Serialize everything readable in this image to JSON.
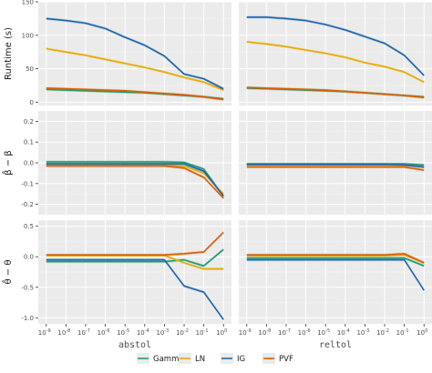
{
  "chart_data": {
    "type": "line",
    "colors": {
      "Gamma": "#1b9e77",
      "LN": "#e6ab02",
      "IG": "#2166ac",
      "PVF": "#d95f02"
    },
    "series_names": [
      "Gamma",
      "LN",
      "IG",
      "PVF"
    ],
    "x": [
      -9,
      -8,
      -7,
      -6,
      -5,
      -4,
      -3,
      -2,
      -1,
      0
    ],
    "x_tick_labels": [
      "10-9",
      "10-8",
      "10-7",
      "10-6",
      "10-5",
      "10-4",
      "10-3",
      "10-2",
      "10-1",
      "100"
    ],
    "x_tick_base": "10",
    "x_tick_exponents": [
      "-9",
      "-8",
      "-7",
      "-6",
      "-5",
      "-4",
      "-3",
      "-2",
      "-1",
      "0"
    ],
    "columns": [
      "abstol",
      "reltol"
    ],
    "rows": [
      {
        "ylabel": "Runtime (s)",
        "ylim": [
          -5,
          150
        ],
        "yticks": [
          0,
          50,
          100,
          150
        ],
        "ytick_labels": [
          "0",
          "50",
          "100",
          "150"
        ],
        "panels": [
          {
            "series": [
              {
                "name": "Gamma",
                "values": [
                  19,
                  18,
                  17,
                  16,
                  15,
                  14,
                  12,
                  10,
                  8,
                  5
                ]
              },
              {
                "name": "LN",
                "values": [
                  80,
                  75,
                  70,
                  64,
                  58,
                  52,
                  45,
                  37,
                  30,
                  18
                ]
              },
              {
                "name": "IG",
                "values": [
                  125,
                  122,
                  118,
                  110,
                  97,
                  85,
                  69,
                  42,
                  35,
                  20
                ]
              },
              {
                "name": "PVF",
                "values": [
                  21,
                  20,
                  19,
                  18,
                  17,
                  15,
                  13,
                  11,
                  8,
                  4
                ]
              }
            ]
          },
          {
            "series": [
              {
                "name": "Gamma",
                "values": [
                  21,
                  20,
                  19,
                  18,
                  17,
                  16,
                  14,
                  12,
                  10,
                  8
                ]
              },
              {
                "name": "LN",
                "values": [
                  90,
                  87,
                  83,
                  78,
                  73,
                  67,
                  59,
                  53,
                  45,
                  30
                ]
              },
              {
                "name": "IG",
                "values": [
                  127,
                  127,
                  125,
                  122,
                  116,
                  108,
                  98,
                  88,
                  70,
                  40
                ]
              },
              {
                "name": "PVF",
                "values": [
                  22,
                  21,
                  20,
                  19,
                  18,
                  16,
                  14,
                  12,
                  10,
                  7
                ]
              }
            ]
          }
        ]
      },
      {
        "ylabel": "β̂ − β",
        "ylim": [
          -0.25,
          0.25
        ],
        "yticks": [
          -0.2,
          -0.1,
          0.0,
          0.1,
          0.2
        ],
        "ytick_labels": [
          "-0.2",
          "-0.1",
          "0.0",
          "0.1",
          "0.2"
        ],
        "panels": [
          {
            "series": [
              {
                "name": "Gamma",
                "values": [
                  0.005,
                  0.005,
                  0.005,
                  0.005,
                  0.005,
                  0.005,
                  0.005,
                  0.002,
                  -0.03,
                  -0.16
                ]
              },
              {
                "name": "LN",
                "values": [
                  -0.01,
                  -0.01,
                  -0.01,
                  -0.01,
                  -0.01,
                  -0.01,
                  -0.01,
                  -0.015,
                  -0.05,
                  -0.15
                ]
              },
              {
                "name": "IG",
                "values": [
                  -0.005,
                  -0.005,
                  -0.005,
                  -0.005,
                  -0.005,
                  -0.005,
                  -0.005,
                  -0.005,
                  -0.04,
                  -0.16
                ]
              },
              {
                "name": "PVF",
                "values": [
                  -0.015,
                  -0.015,
                  -0.015,
                  -0.015,
                  -0.015,
                  -0.015,
                  -0.015,
                  -0.025,
                  -0.07,
                  -0.17
                ]
              }
            ]
          },
          {
            "series": [
              {
                "name": "Gamma",
                "values": [
                  -0.005,
                  -0.005,
                  -0.005,
                  -0.005,
                  -0.005,
                  -0.005,
                  -0.005,
                  -0.005,
                  -0.005,
                  -0.01
                ]
              },
              {
                "name": "LN",
                "values": [
                  -0.01,
                  -0.01,
                  -0.01,
                  -0.01,
                  -0.01,
                  -0.01,
                  -0.01,
                  -0.01,
                  -0.01,
                  -0.02
                ]
              },
              {
                "name": "IG",
                "values": [
                  -0.008,
                  -0.008,
                  -0.008,
                  -0.008,
                  -0.008,
                  -0.008,
                  -0.008,
                  -0.008,
                  -0.01,
                  -0.02
                ]
              },
              {
                "name": "PVF",
                "values": [
                  -0.02,
                  -0.02,
                  -0.02,
                  -0.02,
                  -0.02,
                  -0.02,
                  -0.02,
                  -0.02,
                  -0.02,
                  -0.035
                ]
              }
            ]
          }
        ]
      },
      {
        "ylabel": "θ̂ − θ",
        "ylim": [
          -1.1,
          0.6
        ],
        "yticks": [
          -1.0,
          -0.5,
          0.0,
          0.5
        ],
        "ytick_labels": [
          "-1.0",
          "-0.5",
          "0.0",
          "0.5"
        ],
        "panels": [
          {
            "series": [
              {
                "name": "Gamma",
                "values": [
                  -0.08,
                  -0.08,
                  -0.08,
                  -0.08,
                  -0.08,
                  -0.08,
                  -0.08,
                  -0.05,
                  -0.15,
                  0.12
                ]
              },
              {
                "name": "LN",
                "values": [
                  0.02,
                  0.02,
                  0.02,
                  0.02,
                  0.02,
                  0.02,
                  0.02,
                  -0.1,
                  -0.2,
                  -0.2
                ]
              },
              {
                "name": "IG",
                "values": [
                  -0.05,
                  -0.05,
                  -0.05,
                  -0.05,
                  -0.05,
                  -0.05,
                  -0.05,
                  -0.48,
                  -0.58,
                  -1.03
                ]
              },
              {
                "name": "PVF",
                "values": [
                  0.03,
                  0.03,
                  0.03,
                  0.03,
                  0.03,
                  0.03,
                  0.03,
                  0.05,
                  0.08,
                  0.4
                ]
              }
            ]
          },
          {
            "series": [
              {
                "name": "Gamma",
                "values": [
                  -0.02,
                  -0.02,
                  -0.02,
                  -0.02,
                  -0.02,
                  -0.02,
                  -0.02,
                  -0.02,
                  -0.02,
                  -0.15
                ]
              },
              {
                "name": "LN",
                "values": [
                  0.02,
                  0.02,
                  0.02,
                  0.02,
                  0.02,
                  0.02,
                  0.02,
                  0.02,
                  0.03,
                  -0.1
                ]
              },
              {
                "name": "IG",
                "values": [
                  -0.05,
                  -0.05,
                  -0.05,
                  -0.05,
                  -0.05,
                  -0.05,
                  -0.05,
                  -0.05,
                  -0.05,
                  -0.55
                ]
              },
              {
                "name": "PVF",
                "values": [
                  0.03,
                  0.03,
                  0.03,
                  0.03,
                  0.03,
                  0.03,
                  0.03,
                  0.03,
                  0.05,
                  -0.1
                ]
              }
            ]
          }
        ]
      }
    ],
    "legend": {
      "position": "bottom",
      "items": [
        "Gamma",
        "LN",
        "IG",
        "PVF"
      ]
    },
    "grid": true
  }
}
